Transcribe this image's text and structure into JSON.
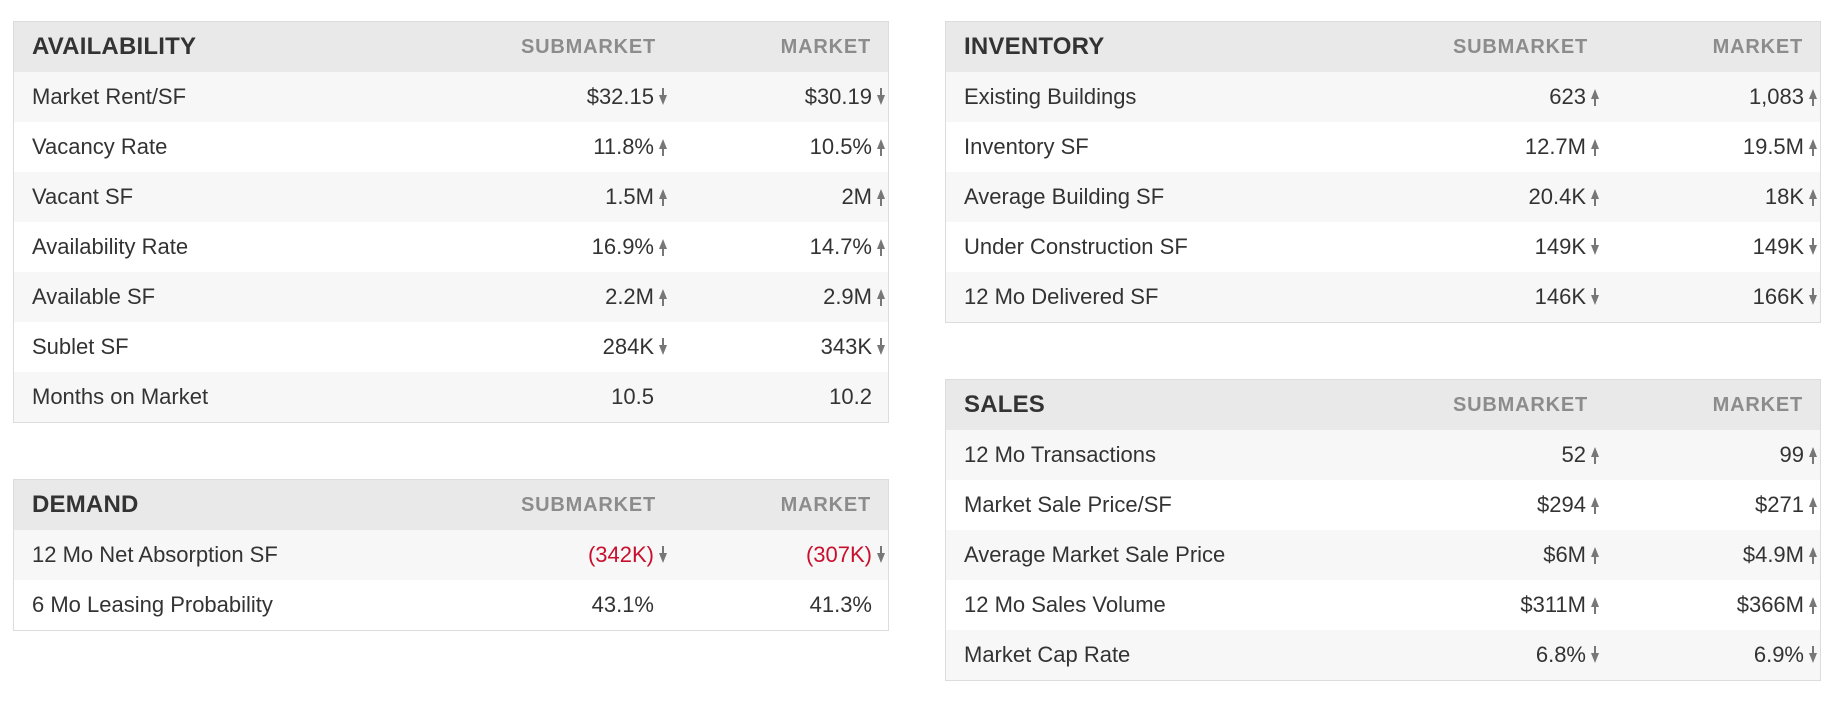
{
  "arrow_color": "#777777",
  "negative_color": "#c8102e",
  "panels": {
    "availability": {
      "title": "AVAILABILITY",
      "submarket_label": "SUBMARKET",
      "market_label": "MARKET",
      "rows": [
        {
          "label": "Market Rent/SF",
          "submarket": "$32.15",
          "sub_trend": "down",
          "market": "$30.19",
          "mkt_trend": "down"
        },
        {
          "label": "Vacancy Rate",
          "submarket": "11.8%",
          "sub_trend": "up",
          "market": "10.5%",
          "mkt_trend": "up"
        },
        {
          "label": "Vacant SF",
          "submarket": "1.5M",
          "sub_trend": "up",
          "market": "2M",
          "mkt_trend": "up"
        },
        {
          "label": "Availability Rate",
          "submarket": "16.9%",
          "sub_trend": "up",
          "market": "14.7%",
          "mkt_trend": "up"
        },
        {
          "label": "Available SF",
          "submarket": "2.2M",
          "sub_trend": "up",
          "market": "2.9M",
          "mkt_trend": "up"
        },
        {
          "label": "Sublet SF",
          "submarket": "284K",
          "sub_trend": "down",
          "market": "343K",
          "mkt_trend": "down"
        },
        {
          "label": "Months on Market",
          "submarket": "10.5",
          "sub_trend": "none",
          "market": "10.2",
          "mkt_trend": "none"
        }
      ]
    },
    "demand": {
      "title": "DEMAND",
      "submarket_label": "SUBMARKET",
      "market_label": "MARKET",
      "rows": [
        {
          "label": "12 Mo Net Absorption SF",
          "submarket": "(342K)",
          "sub_trend": "down",
          "sub_negative": true,
          "market": "(307K)",
          "mkt_trend": "down",
          "mkt_negative": true
        },
        {
          "label": "6 Mo Leasing Probability",
          "submarket": "43.1%",
          "sub_trend": "none",
          "market": "41.3%",
          "mkt_trend": "none"
        }
      ]
    },
    "inventory": {
      "title": "INVENTORY",
      "submarket_label": "SUBMARKET",
      "market_label": "MARKET",
      "rows": [
        {
          "label": "Existing Buildings",
          "submarket": "623",
          "sub_trend": "up",
          "market": "1,083",
          "mkt_trend": "up"
        },
        {
          "label": "Inventory SF",
          "submarket": "12.7M",
          "sub_trend": "up",
          "market": "19.5M",
          "mkt_trend": "up"
        },
        {
          "label": "Average Building SF",
          "submarket": "20.4K",
          "sub_trend": "up",
          "market": "18K",
          "mkt_trend": "up"
        },
        {
          "label": "Under Construction SF",
          "submarket": "149K",
          "sub_trend": "down",
          "market": "149K",
          "mkt_trend": "down"
        },
        {
          "label": "12 Mo Delivered SF",
          "submarket": "146K",
          "sub_trend": "down",
          "market": "166K",
          "mkt_trend": "down"
        }
      ]
    },
    "sales": {
      "title": "SALES",
      "submarket_label": "SUBMARKET",
      "market_label": "MARKET",
      "rows": [
        {
          "label": "12 Mo Transactions",
          "submarket": "52",
          "sub_trend": "up",
          "market": "99",
          "mkt_trend": "up"
        },
        {
          "label": "Market Sale Price/SF",
          "submarket": "$294",
          "sub_trend": "up",
          "market": "$271",
          "mkt_trend": "up"
        },
        {
          "label": "Average Market Sale Price",
          "submarket": "$6M",
          "sub_trend": "up",
          "market": "$4.9M",
          "mkt_trend": "up"
        },
        {
          "label": "12 Mo Sales Volume",
          "submarket": "$311M",
          "sub_trend": "up",
          "market": "$366M",
          "mkt_trend": "up"
        },
        {
          "label": "Market Cap Rate",
          "submarket": "6.8%",
          "sub_trend": "down",
          "market": "6.9%",
          "mkt_trend": "down"
        }
      ]
    }
  }
}
